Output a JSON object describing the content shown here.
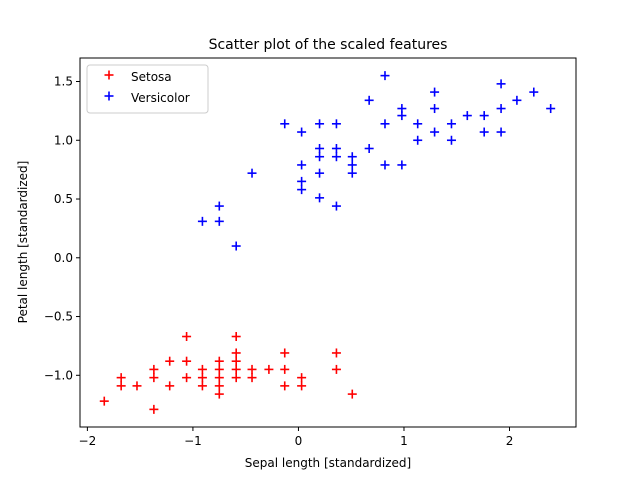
{
  "chart_data": {
    "type": "scatter",
    "title": "Scatter plot of the scaled features",
    "xlabel": "Sepal length [standardized]",
    "ylabel": "Petal length [standardized]",
    "xlim": [
      -2.07,
      2.63
    ],
    "ylim": [
      -1.44,
      1.7
    ],
    "xticks": [
      -2,
      -1,
      0,
      1,
      2
    ],
    "xtick_labels": [
      "−2",
      "−1",
      "0",
      "1",
      "2"
    ],
    "yticks": [
      -1.0,
      -0.5,
      0.0,
      0.5,
      1.0,
      1.5
    ],
    "ytick_labels": [
      "−1.0",
      "−0.5",
      "0.0",
      "0.5",
      "1.0",
      "1.5"
    ],
    "grid": false,
    "legend_position": "top-left",
    "series": [
      {
        "name": "Setosa",
        "color": "#ff0000",
        "marker": "plus",
        "points": [
          [
            -1.84,
            -1.22
          ],
          [
            -1.68,
            -1.02
          ],
          [
            -1.68,
            -1.09
          ],
          [
            -1.53,
            -1.09
          ],
          [
            -1.37,
            -0.95
          ],
          [
            -1.37,
            -1.02
          ],
          [
            -1.37,
            -1.29
          ],
          [
            -1.22,
            -0.88
          ],
          [
            -1.22,
            -1.09
          ],
          [
            -1.06,
            -0.67
          ],
          [
            -1.06,
            -0.88
          ],
          [
            -1.06,
            -1.02
          ],
          [
            -0.91,
            -0.95
          ],
          [
            -0.91,
            -1.02
          ],
          [
            -0.91,
            -1.09
          ],
          [
            -0.75,
            -0.88
          ],
          [
            -0.75,
            -0.95
          ],
          [
            -0.75,
            -1.02
          ],
          [
            -0.75,
            -1.09
          ],
          [
            -0.75,
            -1.16
          ],
          [
            -0.59,
            -0.67
          ],
          [
            -0.59,
            -0.81
          ],
          [
            -0.59,
            -0.88
          ],
          [
            -0.59,
            -0.95
          ],
          [
            -0.59,
            -1.02
          ],
          [
            -0.44,
            -0.95
          ],
          [
            -0.44,
            -1.02
          ],
          [
            -0.28,
            -0.95
          ],
          [
            -0.13,
            -0.81
          ],
          [
            -0.13,
            -0.95
          ],
          [
            -0.13,
            -1.09
          ],
          [
            0.03,
            -1.02
          ],
          [
            0.03,
            -1.09
          ],
          [
            0.36,
            -0.81
          ],
          [
            0.36,
            -0.95
          ],
          [
            0.51,
            -1.16
          ]
        ]
      },
      {
        "name": "Versicolor",
        "color": "#0000ff",
        "marker": "plus",
        "points": [
          [
            -0.91,
            0.31
          ],
          [
            -0.75,
            0.44
          ],
          [
            -0.75,
            0.31
          ],
          [
            -0.59,
            0.1
          ],
          [
            -0.44,
            0.72
          ],
          [
            -0.13,
            1.14
          ],
          [
            0.03,
            1.07
          ],
          [
            0.03,
            0.79
          ],
          [
            0.03,
            0.65
          ],
          [
            0.03,
            0.58
          ],
          [
            0.2,
            1.14
          ],
          [
            0.2,
            0.93
          ],
          [
            0.2,
            0.86
          ],
          [
            0.2,
            0.72
          ],
          [
            0.2,
            0.51
          ],
          [
            0.36,
            1.14
          ],
          [
            0.36,
            0.93
          ],
          [
            0.36,
            0.86
          ],
          [
            0.36,
            0.44
          ],
          [
            0.51,
            0.86
          ],
          [
            0.51,
            0.79
          ],
          [
            0.51,
            0.72
          ],
          [
            0.67,
            1.34
          ],
          [
            0.67,
            0.93
          ],
          [
            0.82,
            1.55
          ],
          [
            0.82,
            1.14
          ],
          [
            0.82,
            0.79
          ],
          [
            0.98,
            1.27
          ],
          [
            0.98,
            1.21
          ],
          [
            0.98,
            0.79
          ],
          [
            1.13,
            1.14
          ],
          [
            1.13,
            1.0
          ],
          [
            1.29,
            1.41
          ],
          [
            1.29,
            1.27
          ],
          [
            1.29,
            1.07
          ],
          [
            1.45,
            1.14
          ],
          [
            1.45,
            1.0
          ],
          [
            1.6,
            1.21
          ],
          [
            1.76,
            1.21
          ],
          [
            1.76,
            1.07
          ],
          [
            1.92,
            1.48
          ],
          [
            1.92,
            1.27
          ],
          [
            1.92,
            1.07
          ],
          [
            2.07,
            1.34
          ],
          [
            2.23,
            1.41
          ],
          [
            2.39,
            1.27
          ]
        ]
      }
    ]
  }
}
